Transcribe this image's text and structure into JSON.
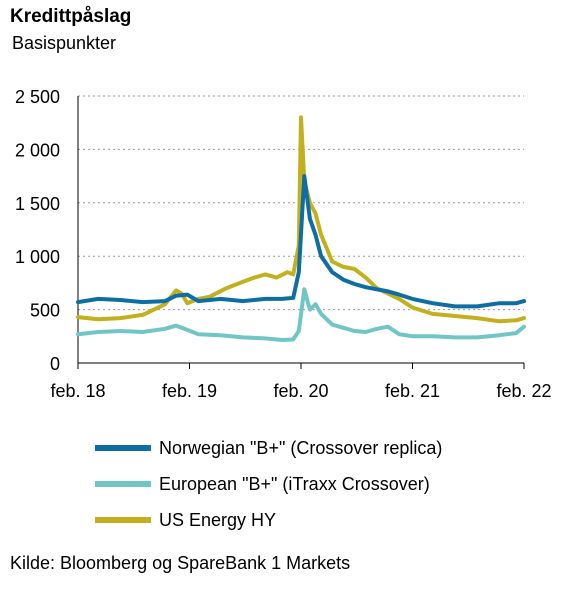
{
  "title": "Kredittpåslag",
  "subtitle": "Basispunkter",
  "source": "Kilde: Bloomberg og SpareBank 1 Markets",
  "chart_data": {
    "type": "line",
    "ylim": [
      0,
      2500
    ],
    "yticks": [
      0,
      500,
      1000,
      1500,
      2000,
      2500
    ],
    "ytick_labels": [
      "0",
      "500",
      "1 000",
      "1 500",
      "2 000",
      "2 500"
    ],
    "xlim": [
      2018.12,
      2022.12
    ],
    "xticks": [
      2018.12,
      2019.12,
      2020.12,
      2021.12,
      2022.12
    ],
    "xtick_labels": [
      "feb. 18",
      "feb. 19",
      "feb. 20",
      "feb. 21",
      "feb. 22"
    ],
    "grid": "horizontal dotted",
    "legend_position": "below",
    "series": [
      {
        "name": "Norwegian \"B+\" (Crossover replica)",
        "color": "#0e6ea4",
        "x": [
          2018.12,
          2018.3,
          2018.5,
          2018.7,
          2018.9,
          2019.0,
          2019.1,
          2019.2,
          2019.4,
          2019.6,
          2019.8,
          2019.95,
          2020.05,
          2020.1,
          2020.15,
          2020.2,
          2020.25,
          2020.3,
          2020.4,
          2020.5,
          2020.6,
          2020.7,
          2020.8,
          2020.9,
          2021.0,
          2021.12,
          2021.3,
          2021.5,
          2021.7,
          2021.9,
          2022.05,
          2022.12
        ],
        "y": [
          570,
          600,
          590,
          570,
          580,
          630,
          640,
          580,
          600,
          580,
          600,
          600,
          610,
          850,
          1750,
          1350,
          1200,
          1000,
          850,
          780,
          740,
          710,
          690,
          670,
          640,
          600,
          560,
          530,
          530,
          560,
          560,
          580
        ]
      },
      {
        "name": "European \"B+\" (iTraxx Crossover)",
        "color": "#6fc6c4",
        "x": [
          2018.12,
          2018.3,
          2018.5,
          2018.7,
          2018.9,
          2019.0,
          2019.1,
          2019.2,
          2019.4,
          2019.6,
          2019.8,
          2019.95,
          2020.05,
          2020.1,
          2020.15,
          2020.2,
          2020.25,
          2020.3,
          2020.4,
          2020.5,
          2020.6,
          2020.7,
          2020.8,
          2020.9,
          2021.0,
          2021.12,
          2021.3,
          2021.5,
          2021.7,
          2021.9,
          2022.05,
          2022.12
        ],
        "y": [
          270,
          290,
          300,
          290,
          320,
          350,
          310,
          270,
          260,
          240,
          230,
          215,
          220,
          300,
          690,
          500,
          550,
          460,
          360,
          330,
          300,
          290,
          320,
          340,
          270,
          250,
          250,
          240,
          240,
          260,
          280,
          340
        ]
      },
      {
        "name": "US Energy HY",
        "color": "#c2b01e",
        "x": [
          2018.12,
          2018.3,
          2018.5,
          2018.7,
          2018.9,
          2019.0,
          2019.05,
          2019.1,
          2019.2,
          2019.3,
          2019.45,
          2019.6,
          2019.7,
          2019.8,
          2019.9,
          2020.0,
          2020.05,
          2020.1,
          2020.12,
          2020.15,
          2020.2,
          2020.25,
          2020.3,
          2020.4,
          2020.5,
          2020.6,
          2020.7,
          2020.8,
          2020.9,
          2021.0,
          2021.12,
          2021.3,
          2021.5,
          2021.7,
          2021.9,
          2022.05,
          2022.12
        ],
        "y": [
          430,
          410,
          420,
          450,
          550,
          680,
          650,
          560,
          600,
          620,
          700,
          760,
          800,
          830,
          800,
          850,
          830,
          1100,
          2300,
          1700,
          1500,
          1400,
          1200,
          950,
          900,
          880,
          800,
          700,
          650,
          600,
          520,
          460,
          440,
          420,
          390,
          400,
          420
        ]
      }
    ]
  }
}
